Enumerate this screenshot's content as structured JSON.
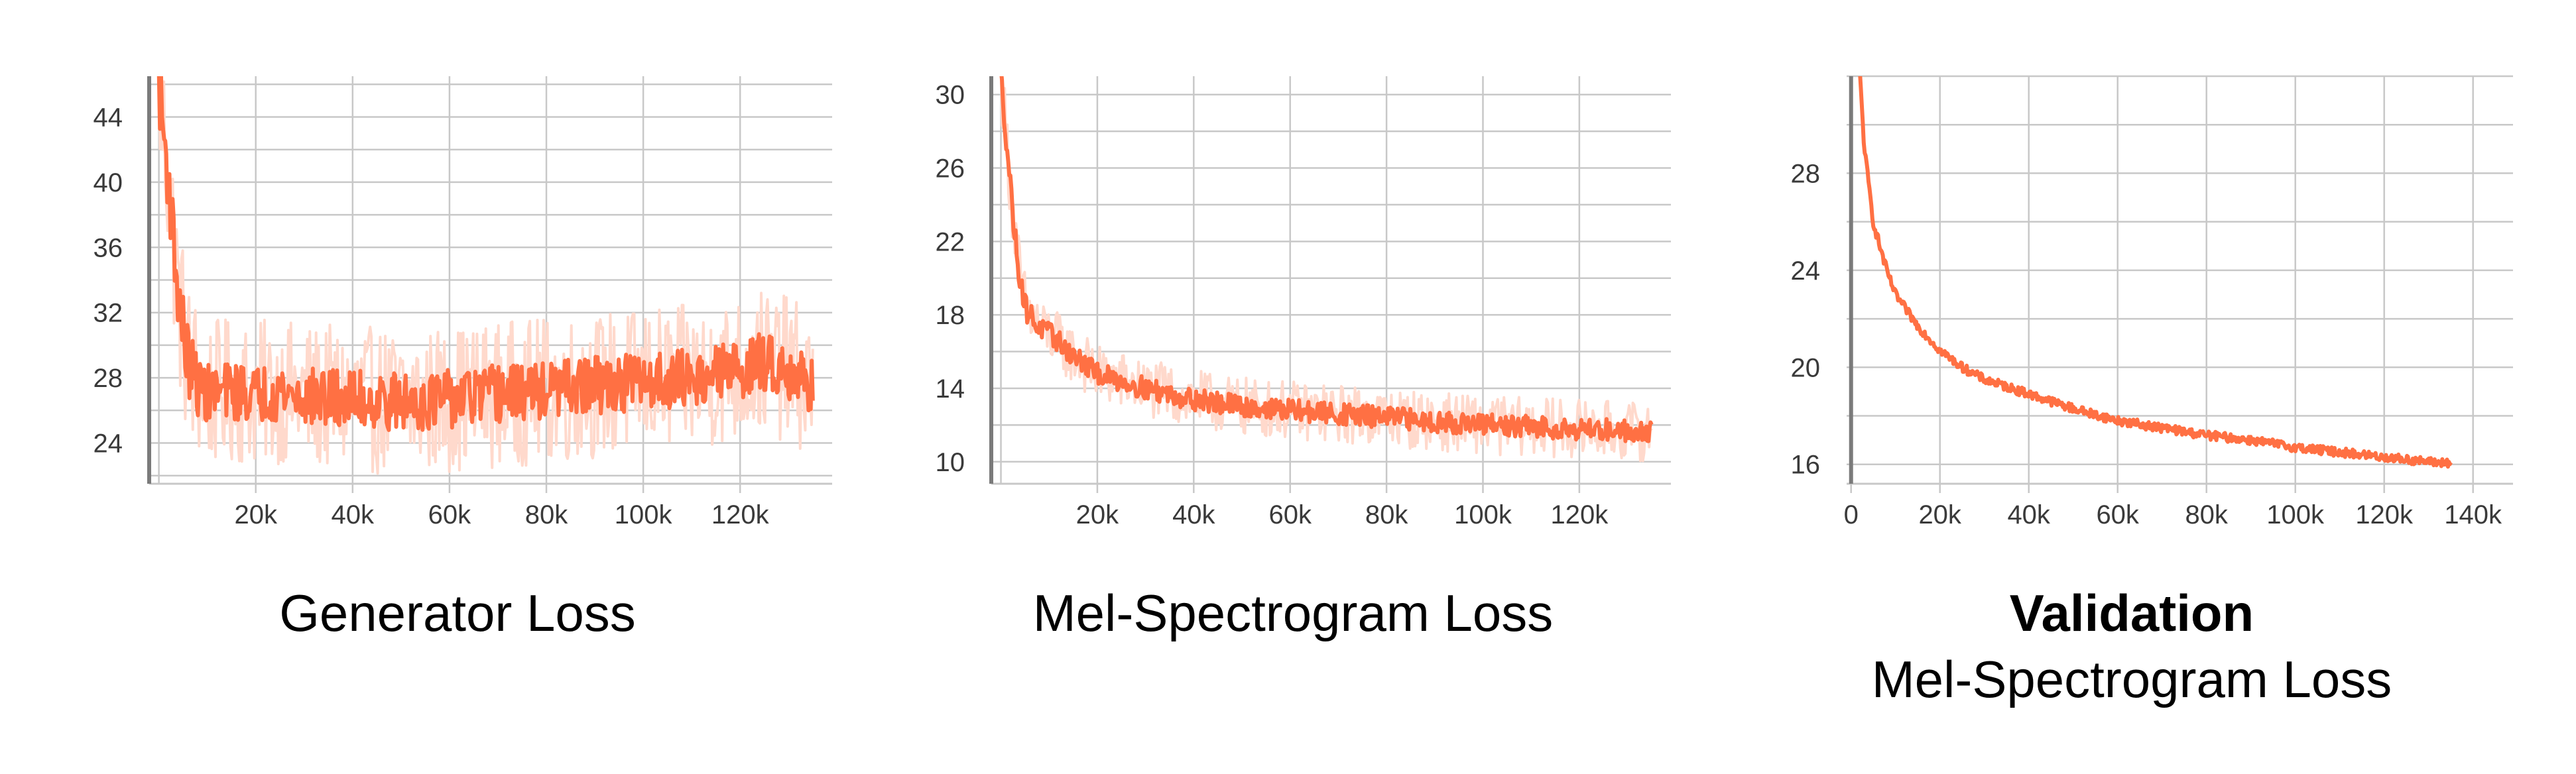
{
  "colors": {
    "accent": "#ff7043",
    "accent_light": "#ffd9cc",
    "grid": "#c8c8c8",
    "axis": "#888888"
  },
  "chart_data": [
    {
      "type": "line",
      "title": "Generator Loss",
      "subtitle": "",
      "xlabel": "",
      "ylabel": "",
      "xlim": [
        -2000,
        139000
      ],
      "ylim": [
        21.5,
        46.5
      ],
      "x_ticks": [
        20000,
        40000,
        60000,
        80000,
        100000,
        120000
      ],
      "x_tick_labels": [
        "20k",
        "40k",
        "60k",
        "80k",
        "100k",
        "120k"
      ],
      "y_ticks": [
        24,
        28,
        32,
        36,
        40,
        44
      ],
      "y_tick_labels": [
        "24",
        "28",
        "32",
        "36",
        "40",
        "44"
      ],
      "grid": true,
      "series": [
        {
          "style": "smoothed",
          "x": [
            0,
            2000,
            4000,
            6000,
            8000,
            10000,
            15000,
            20000,
            25000,
            30000,
            40000,
            50000,
            60000,
            70000,
            80000,
            90000,
            100000,
            110000,
            120000,
            125000,
            130000,
            135000
          ],
          "y": [
            46,
            40,
            33,
            29,
            27.5,
            27,
            27.2,
            27,
            27.2,
            26.8,
            26.7,
            26.5,
            26.7,
            27,
            27.2,
            27.5,
            27.8,
            28,
            28.5,
            29,
            28.5,
            27.5
          ],
          "noise": 1.8
        },
        {
          "style": "raw",
          "x": [
            0,
            2000,
            4000,
            6000,
            8000,
            10000,
            15000,
            20000,
            25000,
            30000,
            40000,
            50000,
            60000,
            70000,
            80000,
            90000,
            100000,
            110000,
            120000,
            125000,
            130000,
            135000
          ],
          "y": [
            46,
            40,
            33,
            29,
            27.5,
            27,
            27.2,
            27,
            27.2,
            26.8,
            26.7,
            26.5,
            26.7,
            27,
            27.2,
            27.5,
            27.8,
            28,
            28.5,
            29,
            28.5,
            27.5
          ],
          "noise": 4.5
        }
      ]
    },
    {
      "type": "line",
      "title": "Mel-Spectrogram Loss",
      "subtitle": "",
      "xlabel": "",
      "ylabel": "",
      "xlim": [
        -2000,
        139000
      ],
      "ylim": [
        8.8,
        31
      ],
      "x_ticks": [
        20000,
        40000,
        60000,
        80000,
        100000,
        120000
      ],
      "x_tick_labels": [
        "20k",
        "40k",
        "60k",
        "80k",
        "100k",
        "120k"
      ],
      "y_ticks": [
        10,
        14,
        18,
        22,
        26,
        30
      ],
      "y_tick_labels": [
        "10",
        "14",
        "18",
        "22",
        "26",
        "30"
      ],
      "grid": true,
      "series": [
        {
          "style": "smoothed",
          "x": [
            0,
            1000,
            2000,
            3000,
            4000,
            5000,
            6000,
            8000,
            10000,
            15000,
            20000,
            30000,
            40000,
            50000,
            60000,
            70000,
            80000,
            90000,
            100000,
            110000,
            120000,
            130000,
            135000
          ],
          "y": [
            31,
            28,
            25,
            22,
            20,
            18.5,
            18,
            17.3,
            17,
            15.8,
            14.8,
            14,
            13.4,
            13,
            12.8,
            12.6,
            12.4,
            12.2,
            12,
            11.9,
            11.8,
            11.7,
            11.6
          ],
          "noise": 0.6
        },
        {
          "style": "raw",
          "x": [
            0,
            1000,
            2000,
            3000,
            4000,
            5000,
            6000,
            8000,
            10000,
            15000,
            20000,
            30000,
            40000,
            50000,
            60000,
            70000,
            80000,
            90000,
            100000,
            110000,
            120000,
            130000,
            135000
          ],
          "y": [
            31,
            28,
            25,
            22,
            20,
            18.5,
            18,
            17.3,
            17,
            15.8,
            14.8,
            14,
            13.4,
            13,
            12.8,
            12.6,
            12.4,
            12.2,
            12,
            11.9,
            11.8,
            11.7,
            11.6
          ],
          "noise": 1.6
        }
      ]
    },
    {
      "type": "line",
      "title": "Validation",
      "subtitle": "Mel-Spectrogram Loss",
      "xlabel": "",
      "ylabel": "",
      "xlim": [
        -1000,
        149000
      ],
      "ylim": [
        15.2,
        32
      ],
      "x_ticks": [
        0,
        20000,
        40000,
        60000,
        80000,
        100000,
        120000,
        140000
      ],
      "x_tick_labels": [
        "0",
        "20k",
        "40k",
        "60k",
        "80k",
        "100k",
        "120k",
        "140k"
      ],
      "y_ticks": [
        16,
        20,
        24,
        28
      ],
      "y_tick_labels": [
        "16",
        "20",
        "24",
        "28"
      ],
      "grid": true,
      "series": [
        {
          "style": "smoothed",
          "x": [
            2000,
            3000,
            4000,
            5000,
            6000,
            8000,
            10000,
            15000,
            20000,
            25000,
            30000,
            40000,
            50000,
            60000,
            70000,
            80000,
            90000,
            100000,
            110000,
            120000,
            130000,
            135000
          ],
          "y": [
            32,
            29,
            27.5,
            26,
            25.3,
            24,
            23,
            21.7,
            20.7,
            20,
            19.5,
            18.9,
            18.3,
            17.8,
            17.5,
            17.2,
            17,
            16.7,
            16.5,
            16.3,
            16.1,
            16.05
          ],
          "noise": 0.18
        }
      ]
    }
  ]
}
